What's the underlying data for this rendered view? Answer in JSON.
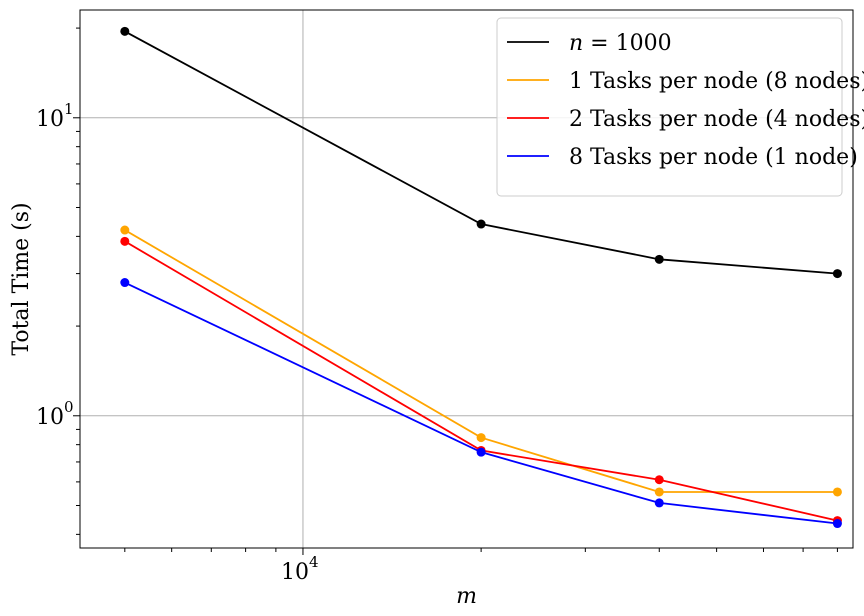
{
  "chart_data": {
    "type": "line",
    "xlabel": "m",
    "ylabel": "Total Time (s)",
    "xscale": "log",
    "yscale": "log",
    "xlim": [
      4200,
      85000
    ],
    "ylim": [
      0.36,
      23
    ],
    "grid": true,
    "legend_position": "top-right",
    "x_ticks": [
      {
        "value": 10000,
        "base": "10",
        "exp": "4"
      }
    ],
    "y_ticks": [
      {
        "value": 1,
        "base": "10",
        "exp": "0"
      },
      {
        "value": 10,
        "base": "10",
        "exp": "1"
      }
    ],
    "x": [
      5000,
      20000,
      40000,
      80000
    ],
    "series": [
      {
        "name": "n = 1000",
        "name_math": "n",
        "name_rest": " = 1000",
        "color": "#000000",
        "values": [
          19.5,
          4.4,
          3.35,
          3.0
        ]
      },
      {
        "name": "1 Tasks per node (8 nodes)",
        "color": "#FFA500",
        "values": [
          4.2,
          0.845,
          0.555,
          0.555
        ]
      },
      {
        "name": "2 Tasks per node (4 nodes)",
        "color": "#FF0000",
        "values": [
          3.85,
          0.765,
          0.61,
          0.445
        ]
      },
      {
        "name": "8 Tasks per node (1 node)",
        "color": "#0000FF",
        "values": [
          2.8,
          0.755,
          0.51,
          0.435
        ]
      }
    ]
  }
}
